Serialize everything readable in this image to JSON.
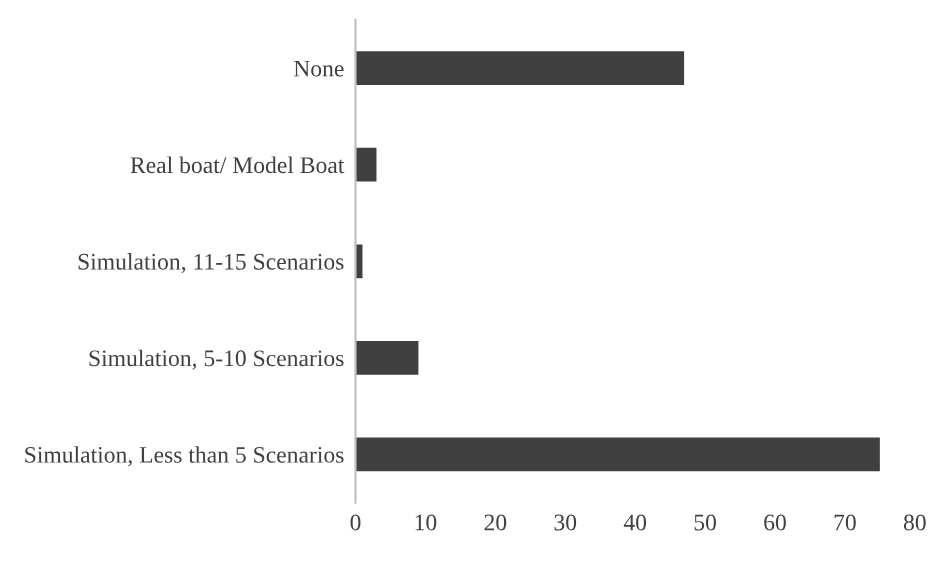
{
  "chart_data": {
    "type": "bar",
    "orientation": "horizontal",
    "categories": [
      "None",
      "Real boat/ Model Boat",
      "Simulation, 11-15 Scenarios",
      "Simulation, 5-10 Scenarios",
      "Simulation, Less than 5 Scenarios"
    ],
    "values": [
      47,
      3,
      1,
      9,
      75
    ],
    "color": "#404040",
    "xlim": [
      0,
      80
    ],
    "xticks": [
      0,
      10,
      20,
      30,
      40,
      50,
      60,
      70,
      80
    ],
    "grid": false,
    "legend": false
  }
}
